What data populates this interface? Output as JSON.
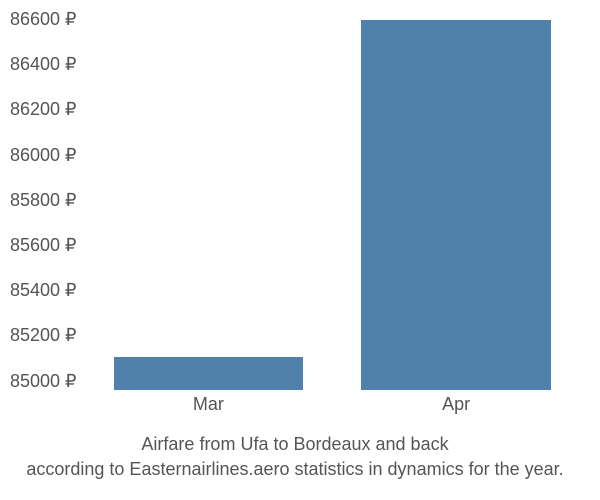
{
  "chart": {
    "type": "bar",
    "categories": [
      "Mar",
      "Apr"
    ],
    "values": [
      85140,
      86600
    ],
    "bar_color": "#5081ad",
    "ylim": [
      85000,
      86600
    ],
    "ytick_step": 200,
    "yticks": [
      "86600 ₽",
      "86400 ₽",
      "86200 ₽",
      "86000 ₽",
      "85800 ₽",
      "85600 ₽",
      "85400 ₽",
      "85200 ₽",
      "85000 ₽"
    ],
    "ytick_values": [
      86600,
      86400,
      86200,
      86000,
      85800,
      85600,
      85400,
      85200,
      85000
    ],
    "currency_symbol": "₽",
    "background_color": "#ffffff",
    "text_color": "#555555",
    "label_fontsize": 18,
    "bar_width": 0.85
  },
  "caption": {
    "line1": "Airfare from Ufa to Bordeaux and back",
    "line2": "according to Easternairlines.aero statistics in dynamics for the year."
  }
}
